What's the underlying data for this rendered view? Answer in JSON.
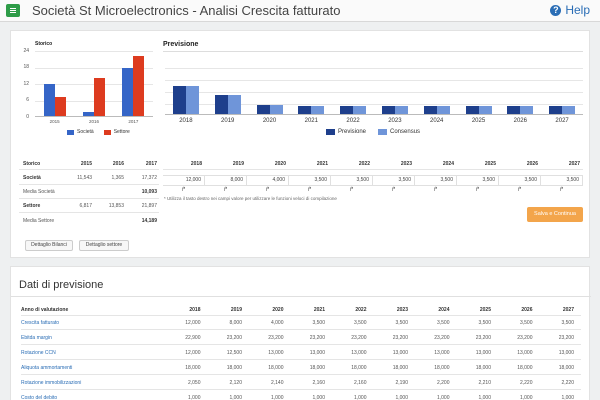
{
  "app": {
    "title": "Società St Microelectronics - Analisi Crescita fatturato",
    "help_label": "Help"
  },
  "storico_chart": {
    "title": "Storico",
    "y_ticks": [
      "24",
      "18",
      "12",
      "6",
      "0"
    ],
    "legend": [
      "Società",
      "Settore"
    ],
    "colors": {
      "societa": "#3565c7",
      "settore": "#dd3b1f"
    }
  },
  "previsione_chart": {
    "title": "Previsione",
    "legend": [
      "Previsione",
      "Consensus"
    ],
    "colors": {
      "previsione": "#1e3f8c",
      "consensus": "#6f95d9"
    }
  },
  "chart_data": [
    {
      "type": "bar",
      "title": "Storico",
      "categories": [
        "2015",
        "2016",
        "2017"
      ],
      "ylim": [
        0,
        24
      ],
      "series": [
        {
          "name": "Società",
          "values": [
            11.5,
            1.4,
            17.4
          ]
        },
        {
          "name": "Settore",
          "values": [
            6.8,
            13.9,
            21.9
          ]
        }
      ],
      "grid": true,
      "legend_position": "bottom"
    },
    {
      "type": "bar",
      "title": "Previsione",
      "categories": [
        "2018",
        "2019",
        "2020",
        "2021",
        "2022",
        "2023",
        "2024",
        "2025",
        "2026",
        "2027"
      ],
      "ylim": [
        0,
        20
      ],
      "series": [
        {
          "name": "Previsione",
          "values": [
            12.0,
            8.0,
            4.0,
            3.5,
            3.5,
            3.5,
            3.5,
            3.5,
            3.5,
            3.5
          ]
        },
        {
          "name": "Consensus",
          "values": [
            12.0,
            8.0,
            4.0,
            3.5,
            3.5,
            3.5,
            3.5,
            3.5,
            3.5,
            3.5
          ]
        }
      ],
      "grid": true,
      "legend_position": "bottom"
    }
  ],
  "storico_table": {
    "header": [
      "Storico",
      "2015",
      "2016",
      "2017"
    ],
    "societa": {
      "label": "Società",
      "values": [
        "11,543",
        "1,365",
        "17,372"
      ]
    },
    "media_societa": {
      "label": "Media Società",
      "value": "10,093"
    },
    "settore": {
      "label": "Settore",
      "values": [
        "6,817",
        "13,853",
        "21,897"
      ]
    },
    "media_settore": {
      "label": "Media Settore",
      "value": "14,189"
    }
  },
  "previsione_table": {
    "years": [
      "2018",
      "2019",
      "2020",
      "2021",
      "2022",
      "2023",
      "2024",
      "2025",
      "2026",
      "2027"
    ],
    "values": [
      "12,000",
      "8,000",
      "4,000",
      "3,500",
      "3,500",
      "3,500",
      "3,500",
      "3,500",
      "3,500",
      "3,500"
    ],
    "note": "* Utilizza il tasto destro nei campi valore per utilizzare le funzioni veloci di compilazione"
  },
  "buttons": {
    "dettaglio_bilanci": "Dettaglio Bilanci",
    "dettaglio_settore": "Dettaglio settore",
    "salva": "Salva e Continua"
  },
  "dati": {
    "title": "Dati di previsione",
    "col_header": "Anno di valutazione",
    "years": [
      "2018",
      "2019",
      "2020",
      "2021",
      "2022",
      "2023",
      "2024",
      "2025",
      "2026",
      "2027"
    ],
    "rows": [
      {
        "label": "Crescita fatturato",
        "values": [
          "12,000",
          "8,000",
          "4,000",
          "3,500",
          "3,500",
          "3,500",
          "3,500",
          "3,500",
          "3,500",
          "3,500"
        ]
      },
      {
        "label": "Ebitda margin",
        "values": [
          "22,900",
          "23,200",
          "23,200",
          "23,200",
          "23,200",
          "23,200",
          "23,200",
          "23,200",
          "23,200",
          "23,200"
        ]
      },
      {
        "label": "Rotazione CCN",
        "values": [
          "12,000",
          "12,500",
          "13,000",
          "13,000",
          "13,000",
          "13,000",
          "13,000",
          "13,000",
          "13,000",
          "13,000"
        ]
      },
      {
        "label": "Aliquota ammortamenti",
        "values": [
          "18,000",
          "18,000",
          "18,000",
          "18,000",
          "18,000",
          "18,000",
          "18,000",
          "18,000",
          "18,000",
          "18,000"
        ]
      },
      {
        "label": "Rotazione immobilizzazioni",
        "values": [
          "2,050",
          "2,120",
          "2,140",
          "2,160",
          "2,160",
          "2,190",
          "2,200",
          "2,210",
          "2,220",
          "2,220"
        ]
      },
      {
        "label": "Costo del debito",
        "values": [
          "1,000",
          "1,000",
          "1,000",
          "1,000",
          "1,000",
          "1,000",
          "1,000",
          "1,000",
          "1,000",
          "1,000"
        ]
      }
    ]
  }
}
